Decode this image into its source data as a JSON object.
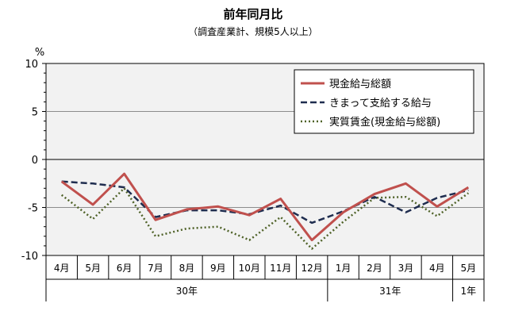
{
  "chart_data": {
    "type": "line",
    "title": "前年同月比",
    "subtitle": "（調査産業計、規模5人以上）",
    "ylabel": "%",
    "ylim": [
      -10,
      10
    ],
    "yticks": [
      "10",
      "5",
      "0",
      "-5",
      "-10"
    ],
    "categories": [
      "4月",
      "5月",
      "6月",
      "7月",
      "8月",
      "9月",
      "10月",
      "11月",
      "12月",
      "1月",
      "2月",
      "3月",
      "4月",
      "5月"
    ],
    "groups": [
      {
        "label": "30年",
        "span": 9
      },
      {
        "label": "31年",
        "span": 4
      },
      {
        "label": "1年",
        "span": 1
      }
    ],
    "grid": true,
    "legend_position": "top-right",
    "series": [
      {
        "name": "現金給与総額",
        "color": "#c0504d",
        "style": "solid",
        "values": [
          -2.3,
          -4.7,
          -1.5,
          -6.3,
          -5.2,
          -4.9,
          -5.8,
          -4.1,
          -8.4,
          -5.5,
          -3.6,
          -2.5,
          -4.9,
          -2.9
        ]
      },
      {
        "name": "きまって支給する給与",
        "color": "#1f2d4f",
        "style": "dashed",
        "values": [
          -2.3,
          -2.5,
          -2.9,
          -6.0,
          -5.3,
          -5.3,
          -5.7,
          -4.8,
          -6.6,
          -5.4,
          -3.9,
          -5.5,
          -4.0,
          -3.2
        ]
      },
      {
        "name": "実質賃金(現金給与総額)",
        "color": "#4f6228",
        "style": "dotted",
        "values": [
          -3.7,
          -6.2,
          -3.0,
          -8.0,
          -7.2,
          -7.0,
          -8.4,
          -6.0,
          -9.3,
          -6.5,
          -4.0,
          -3.9,
          -5.9,
          -3.5
        ]
      }
    ]
  }
}
